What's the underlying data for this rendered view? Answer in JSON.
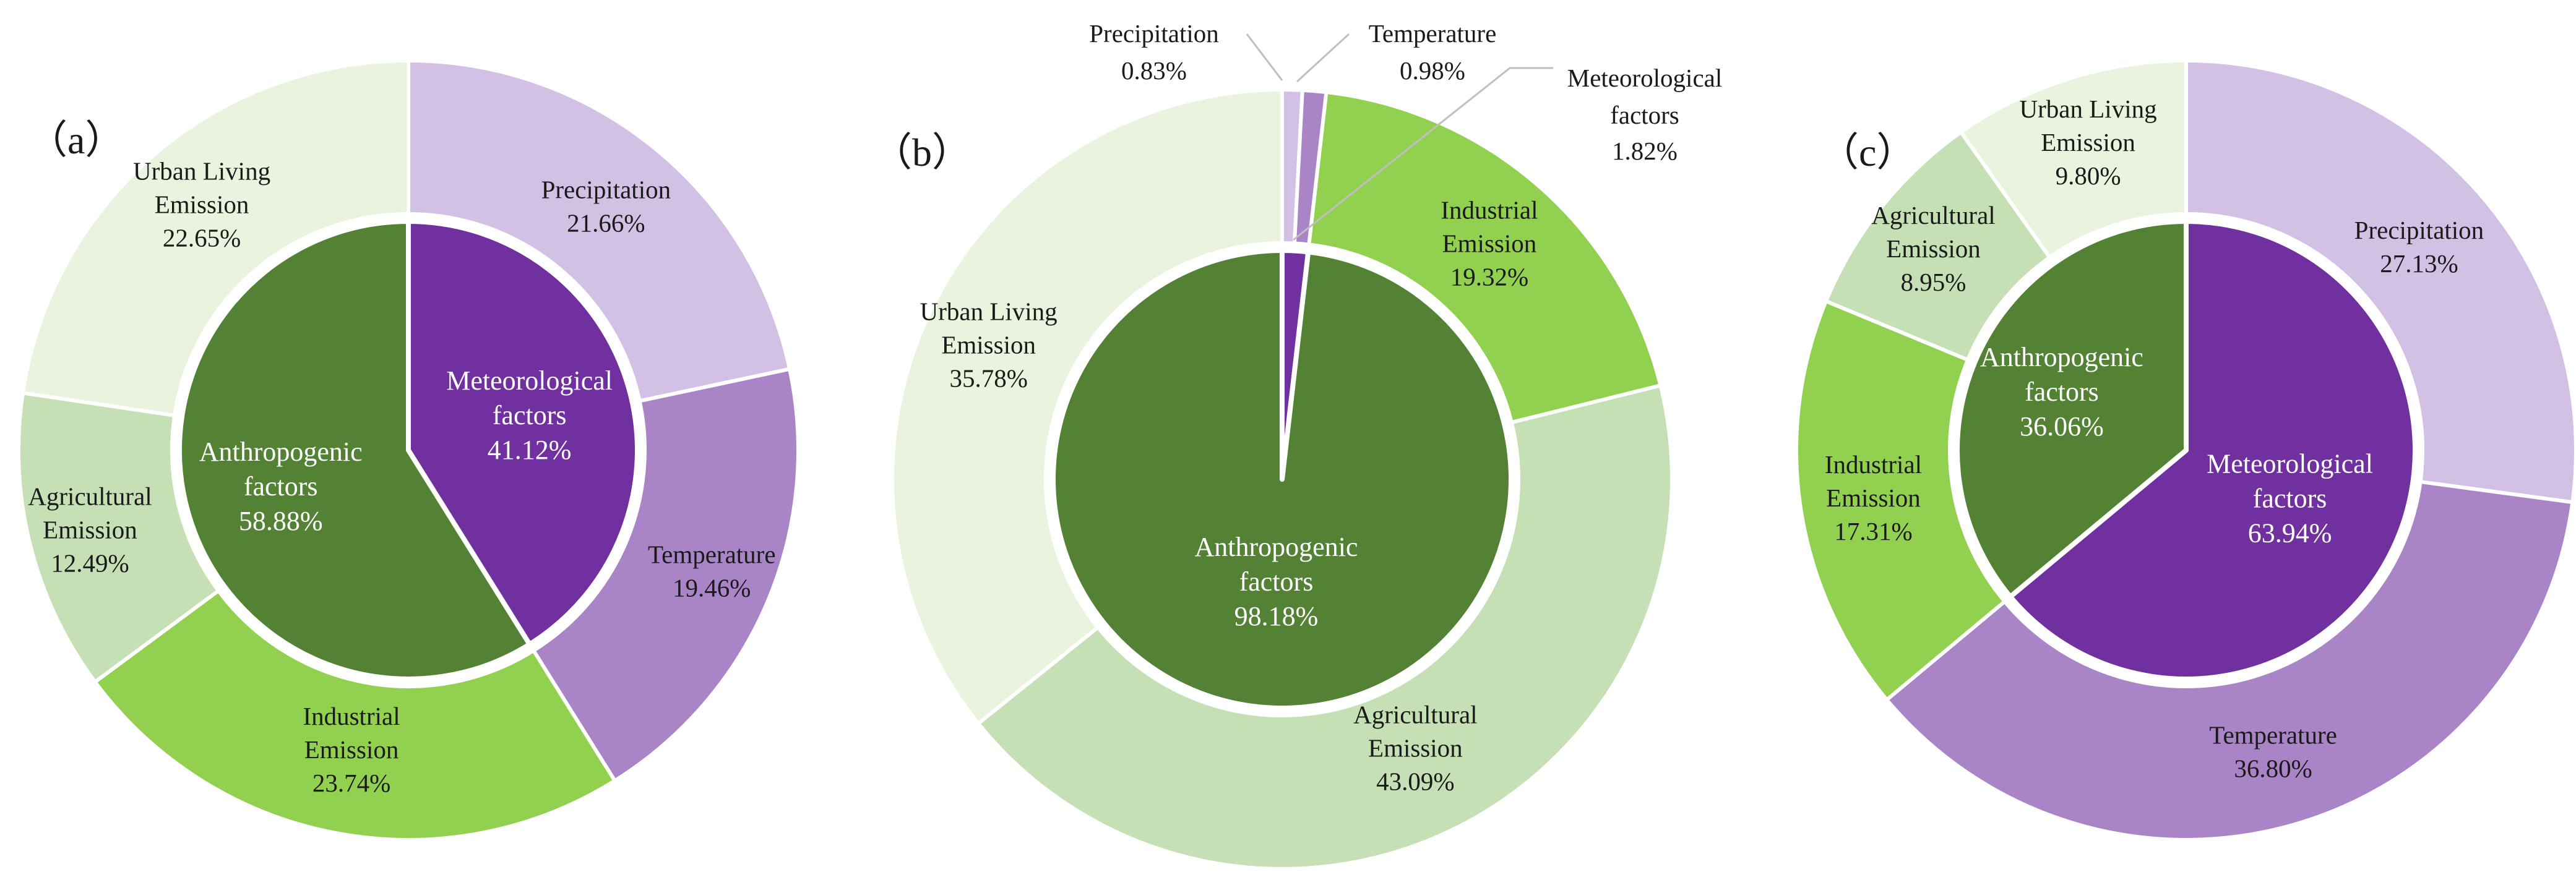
{
  "chart_data": [
    {
      "type": "pie",
      "panel_label": "（a）",
      "inner": [
        {
          "name": "Meteorological factors",
          "lines": [
            "Meteorological",
            "factors",
            "41.12%"
          ],
          "value": 41.12,
          "color": "#7030a0"
        },
        {
          "name": "Anthropogenic factors",
          "lines": [
            "Anthropogenic",
            "factors",
            "58.88%"
          ],
          "value": 58.88,
          "color": "#548235"
        }
      ],
      "outer": [
        {
          "name": "Precipitation",
          "lines": [
            "Precipitation",
            "21.66%"
          ],
          "value": 21.66,
          "color": "#d2c1e4"
        },
        {
          "name": "Temperature",
          "lines": [
            "Temperature",
            "19.46%"
          ],
          "value": 19.46,
          "color": "#a985c8"
        },
        {
          "name": "Industrial Emission",
          "lines": [
            "Industrial",
            "Emission",
            "23.74%"
          ],
          "value": 23.74,
          "color": "#92d050"
        },
        {
          "name": "Agricultural Emission",
          "lines": [
            "Agricultural",
            "Emission",
            "12.49%"
          ],
          "value": 12.49,
          "color": "#c5e0b4"
        },
        {
          "name": "Urban Living Emission",
          "lines": [
            "Urban Living",
            "Emission",
            "22.65%"
          ],
          "value": 22.65,
          "color": "#e9f3de"
        }
      ]
    },
    {
      "type": "pie",
      "panel_label": "（b）",
      "inner": [
        {
          "name": "Meteorological factors",
          "lines": [],
          "value": 1.82,
          "color": "#7030a0"
        },
        {
          "name": "Anthropogenic factors",
          "lines": [
            "Anthropogenic",
            "factors",
            "98.18%"
          ],
          "value": 98.18,
          "color": "#548235"
        }
      ],
      "outer": [
        {
          "name": "Precipitation",
          "lines": [
            "Precipitation",
            "0.83%"
          ],
          "value": 0.83,
          "color": "#d2c1e4"
        },
        {
          "name": "Temperature",
          "lines": [
            "Temperature",
            "0.98%"
          ],
          "value": 0.98,
          "color": "#a985c8"
        },
        {
          "name": "Industrial Emission",
          "lines": [
            "Industrial",
            "Emission",
            "19.32%"
          ],
          "value": 19.32,
          "color": "#92d050"
        },
        {
          "name": "Agricultural Emission",
          "lines": [
            "Agricultural",
            "Emission",
            "43.09%"
          ],
          "value": 43.09,
          "color": "#c5e0b4"
        },
        {
          "name": "Urban Living Emission",
          "lines": [
            "Urban Living",
            "Emission",
            "35.78%"
          ],
          "value": 35.78,
          "color": "#e9f3de"
        }
      ],
      "callouts": [
        {
          "lines": [
            "Precipitation",
            "0.83%"
          ]
        },
        {
          "lines": [
            "Temperature",
            "0.98%"
          ]
        },
        {
          "lines": [
            "Meteorological",
            "factors",
            "1.82%"
          ]
        }
      ]
    },
    {
      "type": "pie",
      "panel_label": "（c）",
      "inner": [
        {
          "name": "Meteorological factors",
          "lines": [
            "Meteorological",
            "factors",
            "63.94%"
          ],
          "value": 63.94,
          "color": "#7030a0"
        },
        {
          "name": "Anthropogenic factors",
          "lines": [
            "Anthropogenic",
            "factors",
            "36.06%"
          ],
          "value": 36.06,
          "color": "#548235"
        }
      ],
      "outer": [
        {
          "name": "Precipitation",
          "lines": [
            "Precipitation",
            "27.13%"
          ],
          "value": 27.13,
          "color": "#d2c1e4"
        },
        {
          "name": "Temperature",
          "lines": [
            "Temperature",
            "36.80%"
          ],
          "value": 36.8,
          "color": "#a985c8"
        },
        {
          "name": "Industrial Emission",
          "lines": [
            "Industrial",
            "Emission",
            "17.31%"
          ],
          "value": 17.31,
          "color": "#92d050"
        },
        {
          "name": "Agricultural Emission",
          "lines": [
            "Agricultural",
            "Emission",
            "8.95%"
          ],
          "value": 8.95,
          "color": "#c5e0b4"
        },
        {
          "name": "Urban Living Emission",
          "lines": [
            "Urban Living",
            "Emission",
            "9.80%"
          ],
          "value": 9.8,
          "color": "#e9f3de"
        }
      ]
    }
  ]
}
